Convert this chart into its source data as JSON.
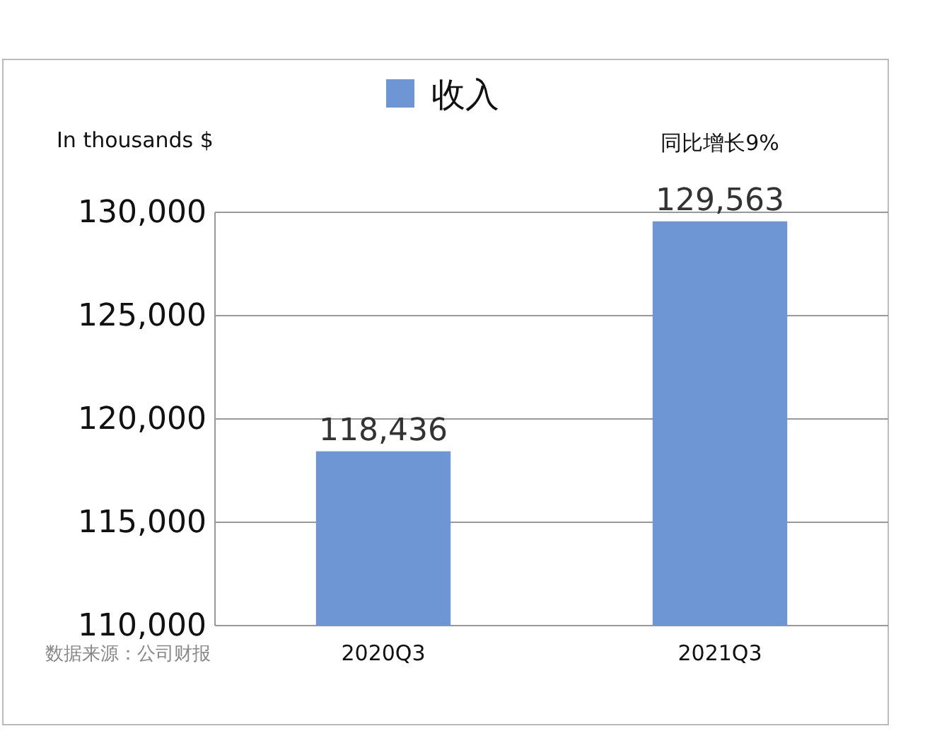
{
  "chart_data": {
    "type": "bar",
    "ylabel": "In thousands $",
    "categories": [
      "2020Q3",
      "2021Q3"
    ],
    "series": [
      {
        "name": "收入",
        "color": "#6f96d4",
        "values": [
          118436,
          129563
        ],
        "value_labels": [
          "118,436",
          "129,563"
        ]
      }
    ],
    "ylim": [
      110000,
      130000
    ],
    "yticks": [
      {
        "value": 110000,
        "label": "110,000"
      },
      {
        "value": 115000,
        "label": "115,000"
      },
      {
        "value": 120000,
        "label": "120,000"
      },
      {
        "value": 125000,
        "label": "125,000"
      },
      {
        "value": 130000,
        "label": "130,000"
      }
    ],
    "grid": "y",
    "legend": "top",
    "annotations": [
      "同比增长9%",
      "数据来源：公司财报"
    ]
  }
}
